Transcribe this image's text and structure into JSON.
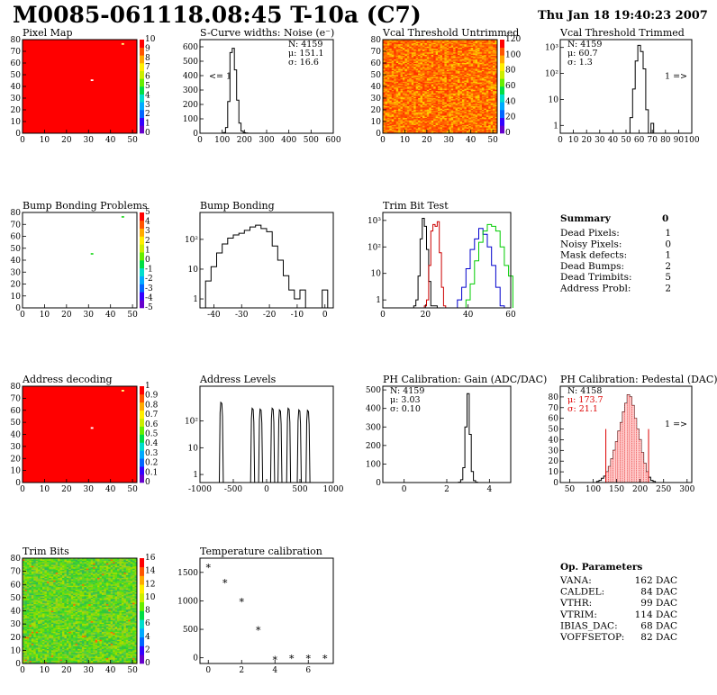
{
  "header": {
    "title": "M0085-061118.08:45 T-10a (C7)",
    "timestamp": "Thu Jan 18 19:40:23 2007"
  },
  "summary": {
    "title": "Summary",
    "value": "0",
    "rows": [
      {
        "label": "Dead Pixels:",
        "value": "1"
      },
      {
        "label": "Noisy Pixels:",
        "value": "0"
      },
      {
        "label": "Mask defects:",
        "value": "1"
      },
      {
        "label": "Dead Bumps:",
        "value": "2"
      },
      {
        "label": "Dead Trimbits:",
        "value": "5"
      },
      {
        "label": "Address Probl:",
        "value": "2"
      }
    ]
  },
  "op_params": {
    "title": "Op. Parameters",
    "rows": [
      {
        "label": "VANA:",
        "value": "162 DAC"
      },
      {
        "label": "CALDEL:",
        "value": "84 DAC"
      },
      {
        "label": "VTHR:",
        "value": "99 DAC"
      },
      {
        "label": "VTRIM:",
        "value": "114 DAC"
      },
      {
        "label": "IBIAS_DAC:",
        "value": "68 DAC"
      },
      {
        "label": "VOFFSETOP:",
        "value": "82 DAC"
      }
    ]
  },
  "colors": {
    "red_map": "#ff0000",
    "green_series": "#00cc00",
    "blue_series": "#0000cc",
    "red_series": "#cc0000",
    "stat_red": "#dd0000"
  },
  "chart_data": [
    {
      "type": "heatmap",
      "title": "Pixel Map",
      "xlim": [
        0,
        52
      ],
      "ylim": [
        0,
        80
      ],
      "xticks": [
        0,
        10,
        20,
        30,
        40,
        50
      ],
      "yticks": [
        0,
        10,
        20,
        30,
        40,
        50,
        60,
        70,
        80
      ],
      "zticks": [
        0,
        1,
        2,
        3,
        4,
        5,
        6,
        7,
        8,
        9,
        10
      ],
      "fill": "uniform-red",
      "marks": [
        {
          "x": 31,
          "y": 45,
          "color": "#ffffff"
        },
        {
          "x": 45,
          "y": 76,
          "color": "#ffff80"
        }
      ]
    },
    {
      "type": "histogram",
      "title": "S-Curve widths: Noise (e⁻)",
      "xlim": [
        0,
        600
      ],
      "ylim": [
        0,
        650
      ],
      "xticks": [
        0,
        100,
        200,
        300,
        400,
        500,
        600
      ],
      "yticks": [
        0,
        100,
        200,
        300,
        400,
        500,
        600
      ],
      "series": [
        {
          "x": [
            110,
            120,
            130,
            140,
            150,
            160,
            170,
            180,
            190,
            200,
            210
          ],
          "values": [
            5,
            40,
            220,
            560,
            590,
            440,
            230,
            70,
            15,
            4,
            1
          ]
        }
      ],
      "stats": [
        "N: 4159",
        "μ: 151.1",
        "σ: 16.6"
      ],
      "annotation": "<= 1"
    },
    {
      "type": "heatmap",
      "title": "Vcal Threshold Untrimmed",
      "xlim": [
        0,
        52
      ],
      "ylim": [
        0,
        80
      ],
      "xticks": [
        0,
        10,
        20,
        30,
        40,
        50
      ],
      "yticks": [
        0,
        10,
        20,
        30,
        40,
        50,
        60,
        70,
        80
      ],
      "zticks": [
        0,
        20,
        40,
        60,
        80,
        100,
        120
      ],
      "fill": "noisy-orange"
    },
    {
      "type": "histogram",
      "title": "Vcal Threshold Trimmed",
      "xlim": [
        0,
        100
      ],
      "ylim_log": [
        0.5,
        2000
      ],
      "xticks": [
        0,
        10,
        20,
        30,
        40,
        50,
        60,
        70,
        80,
        90,
        100
      ],
      "yticks": [
        1,
        10,
        100,
        1000
      ],
      "series": [
        {
          "x": [
            54,
            56,
            58,
            60,
            62,
            64,
            66,
            68,
            70
          ],
          "values": [
            2,
            25,
            300,
            1200,
            700,
            150,
            4,
            0,
            1.2
          ]
        }
      ],
      "stats": [
        "N: 4159",
        "μ: 60.7",
        "σ:  1.3"
      ],
      "annotation": "1 =>"
    },
    {
      "type": "heatmap",
      "title": "Bump Bonding Problems",
      "xlim": [
        0,
        52
      ],
      "ylim": [
        0,
        80
      ],
      "xticks": [
        0,
        10,
        20,
        30,
        40,
        50
      ],
      "yticks": [
        0,
        10,
        20,
        30,
        40,
        50,
        60,
        70,
        80
      ],
      "zticks": [
        -5,
        -4,
        -3,
        -2,
        -1,
        0,
        1,
        2,
        3,
        4,
        5
      ],
      "fill": "white",
      "marks": [
        {
          "x": 31,
          "y": 45,
          "color": "#33dd33"
        },
        {
          "x": 45,
          "y": 76,
          "color": "#33dd33"
        }
      ]
    },
    {
      "type": "histogram",
      "title": "Bump Bonding",
      "xlim": [
        -45,
        3
      ],
      "ylim_log": [
        0.5,
        800
      ],
      "xticks": [
        -40,
        -30,
        -20,
        -10,
        0
      ],
      "yticks": [
        1,
        10,
        100
      ],
      "series": [
        {
          "x": [
            -42,
            -40,
            -38,
            -36,
            -34,
            -32,
            -30,
            -28,
            -26,
            -24,
            -22,
            -20,
            -18,
            -16,
            -14,
            -12,
            -10,
            -8,
            -6,
            -4,
            -2,
            0,
            2
          ],
          "values": [
            4,
            12,
            35,
            70,
            110,
            140,
            160,
            200,
            260,
            300,
            230,
            180,
            60,
            20,
            6,
            2,
            1,
            2,
            0,
            0,
            0,
            2,
            0
          ]
        }
      ]
    },
    {
      "type": "histogram",
      "title": "Trim Bit Test",
      "xlim": [
        0,
        60
      ],
      "ylim_log": [
        0.5,
        2000
      ],
      "xticks": [
        0,
        20,
        40,
        60
      ],
      "yticks": [
        1,
        10,
        100,
        1000
      ],
      "series": [
        {
          "color": "#000000",
          "x": [
            15,
            16,
            17,
            18,
            19,
            20,
            21,
            22,
            23,
            24,
            25
          ],
          "values": [
            0.6,
            1,
            8,
            200,
            1200,
            600,
            80,
            5,
            0.6,
            0.6,
            0.6
          ]
        },
        {
          "color": "#cc0000",
          "x": [
            20,
            21,
            22,
            23,
            24,
            25,
            26,
            27,
            28,
            29
          ],
          "values": [
            0.6,
            1,
            20,
            400,
            700,
            600,
            900,
            60,
            3,
            0.6
          ]
        },
        {
          "color": "#0000cc",
          "x": [
            36,
            38,
            40,
            42,
            44,
            46,
            48,
            50,
            52,
            54,
            56
          ],
          "values": [
            1,
            3,
            15,
            80,
            200,
            500,
            300,
            100,
            20,
            3,
            0.6
          ]
        },
        {
          "color": "#00cc00",
          "x": [
            40,
            42,
            44,
            46,
            48,
            50,
            52,
            54,
            56,
            58,
            60
          ],
          "values": [
            1,
            4,
            30,
            150,
            400,
            700,
            600,
            400,
            100,
            20,
            8
          ]
        }
      ]
    },
    {
      "type": "heatmap",
      "title": "Address decoding",
      "xlim": [
        0,
        52
      ],
      "ylim": [
        0,
        80
      ],
      "xticks": [
        0,
        10,
        20,
        30,
        40,
        50
      ],
      "yticks": [
        0,
        10,
        20,
        30,
        40,
        50,
        60,
        70,
        80
      ],
      "zticks": [
        0,
        0.1,
        0.2,
        0.3,
        0.4,
        0.5,
        0.6,
        0.7,
        0.8,
        0.9,
        1
      ],
      "fill": "uniform-red",
      "marks": [
        {
          "x": 31,
          "y": 45,
          "color": "#ffffff"
        },
        {
          "x": 45,
          "y": 76,
          "color": "#ffff80"
        }
      ]
    },
    {
      "type": "histogram",
      "title": "Address Levels",
      "xlim": [
        -1000,
        1000
      ],
      "ylim_log": [
        0.5,
        2000
      ],
      "xticks": [
        -1000,
        -500,
        0,
        500,
        1000
      ],
      "yticks": [
        1,
        10,
        100
      ],
      "peaks": [
        -680,
        -210,
        -90,
        90,
        200,
        330,
        490,
        620
      ],
      "peak_heights": [
        500,
        300,
        280,
        300,
        260,
        300,
        260,
        250
      ]
    },
    {
      "type": "histogram",
      "title": "PH Calibration: Gain (ADC/DAC)",
      "xlim": [
        -1,
        5
      ],
      "ylim": [
        0,
        520
      ],
      "xticks": [
        0,
        2,
        4
      ],
      "yticks": [
        0,
        100,
        200,
        300,
        400,
        500
      ],
      "series": [
        {
          "x": [
            2.6,
            2.7,
            2.8,
            2.9,
            3.0,
            3.1,
            3.2,
            3.3,
            3.4
          ],
          "values": [
            2,
            15,
            80,
            300,
            480,
            260,
            60,
            10,
            2
          ]
        }
      ],
      "stats": [
        "N: 4159",
        "μ: 3.03",
        "σ: 0.10"
      ]
    },
    {
      "type": "histogram",
      "title": "PH Calibration: Pedestal (DAC)",
      "xlim": [
        30,
        310
      ],
      "ylim": [
        0,
        90
      ],
      "xticks": [
        50,
        100,
        150,
        200,
        250,
        300
      ],
      "yticks": [
        0,
        10,
        20,
        30,
        40,
        50,
        60,
        70,
        80
      ],
      "series": [
        {
          "x": [
            110,
            115,
            120,
            125,
            130,
            135,
            140,
            145,
            150,
            155,
            160,
            165,
            170,
            175,
            180,
            185,
            190,
            195,
            200,
            205,
            210,
            215,
            220,
            225,
            230,
            235
          ],
          "values": [
            1,
            2,
            4,
            6,
            10,
            15,
            22,
            30,
            38,
            48,
            56,
            66,
            74,
            82,
            80,
            72,
            60,
            50,
            40,
            28,
            18,
            10,
            5,
            2,
            1,
            0
          ]
        }
      ],
      "stats": [
        "N: 4158",
        "μ: 173.7",
        "σ: 21.1"
      ],
      "cut_lines": [
        127,
        218
      ],
      "annotation": "1 =>"
    },
    {
      "type": "heatmap",
      "title": "Trim Bits",
      "xlim": [
        0,
        52
      ],
      "ylim": [
        0,
        80
      ],
      "xticks": [
        0,
        10,
        20,
        30,
        40,
        50
      ],
      "yticks": [
        0,
        10,
        20,
        30,
        40,
        50,
        60,
        70,
        80
      ],
      "zticks": [
        0,
        2,
        4,
        6,
        8,
        10,
        12,
        14,
        16
      ],
      "fill": "noisy-green"
    },
    {
      "type": "scatter",
      "title": "Temperature calibration",
      "xlim": [
        -0.5,
        7.5
      ],
      "ylim": [
        -100,
        1750
      ],
      "xticks": [
        0,
        2,
        4,
        6
      ],
      "yticks": [
        0,
        500,
        1000,
        1500
      ],
      "x": [
        0,
        1,
        2,
        3,
        4,
        5,
        6,
        7
      ],
      "y": [
        1600,
        1330,
        1000,
        500,
        -20,
        0,
        0,
        0
      ]
    }
  ]
}
